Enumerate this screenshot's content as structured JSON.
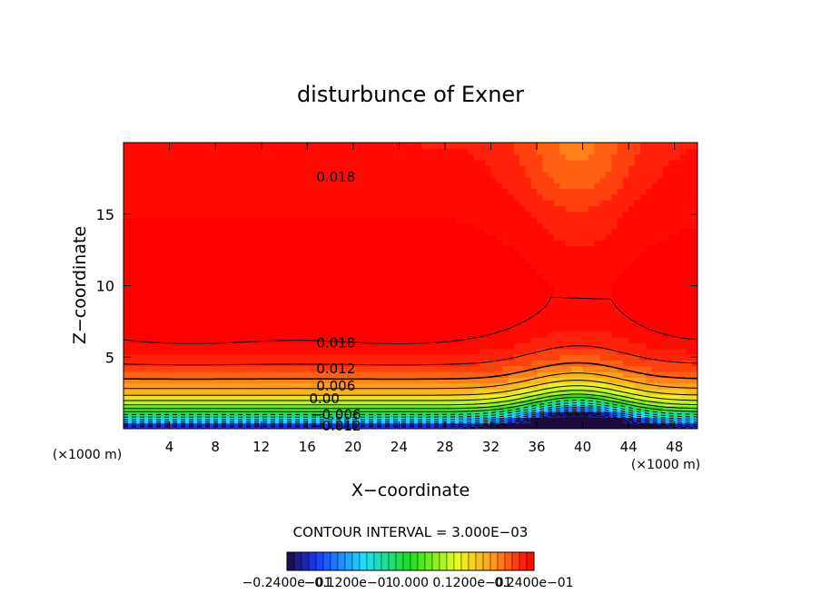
{
  "chart_data": {
    "type": "heatmap",
    "title": "disturbunce of Exner",
    "xlabel": "X−coordinate",
    "ylabel": "Z−coordinate",
    "x_unit_left": "(×1000 m)",
    "x_unit_right": "(×1000 m)",
    "xlim": [
      0,
      50
    ],
    "ylim": [
      0,
      20
    ],
    "x_ticks": [
      4,
      8,
      12,
      16,
      20,
      24,
      28,
      32,
      36,
      40,
      44,
      48
    ],
    "y_ticks": [
      5,
      10,
      15
    ],
    "contour_interval_label": "CONTOUR INTERVAL = 3.000E−03",
    "contour_labels": [
      {
        "text": "0.018",
        "x": 18.5,
        "y": 17.6
      },
      {
        "text": "0.018",
        "x": 18.5,
        "y": 6.0
      },
      {
        "text": "0.012",
        "x": 18.5,
        "y": 4.2
      },
      {
        "text": "0.006",
        "x": 18.5,
        "y": 3.0
      },
      {
        "text": "0.00",
        "x": 17.5,
        "y": 2.1
      },
      {
        "text": "−0.006",
        "x": 18.5,
        "y": 1.0
      },
      {
        "text": "−0.012",
        "x": 18.5,
        "y": 0.2
      }
    ],
    "colorbar": {
      "min": -0.024,
      "max": 0.024,
      "labels": [
        "−0.2400e−01",
        "−0.1200e−01",
        "0.000",
        "0.1200e−01",
        "0.2400e−01"
      ]
    },
    "colors": {
      "c_min": "#1c0a3c",
      "c_blue": "#1c3cff",
      "c_cyan": "#1ce0ff",
      "c_green": "#1ce01c",
      "c_yellow": "#e8ff1c",
      "c_orange": "#ff9c1c",
      "c_red": "#ff1c08",
      "c_max": "#ff0000"
    }
  }
}
